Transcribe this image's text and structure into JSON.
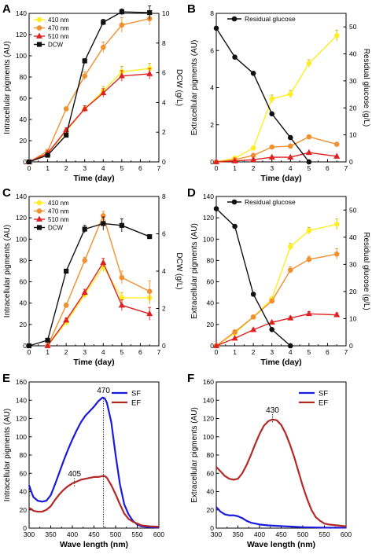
{
  "panels": [
    {
      "id": "A",
      "letter": "A",
      "type": "line",
      "xlabel": "Time (day)",
      "ylabel": "Intracellular pigments (AU)",
      "y2label": "DCW (g/L)",
      "xlim": [
        0,
        7
      ],
      "xticks": [
        0,
        1,
        2,
        3,
        4,
        5,
        6,
        7
      ],
      "ylim": [
        0,
        140
      ],
      "yticks": [
        0,
        20,
        40,
        60,
        80,
        100,
        120,
        140
      ],
      "y2lim": [
        0,
        10
      ],
      "y2ticks": [
        0,
        2,
        4,
        6,
        8,
        10
      ],
      "legend": {
        "position": "top-left",
        "items": [
          "410 nm",
          "470 nm",
          "510 nm",
          "DCW"
        ]
      },
      "series": [
        {
          "name": "410 nm",
          "color": "#ffee22",
          "marker": "circle",
          "axis": "left",
          "x": [
            0,
            1,
            2,
            3,
            4,
            5,
            6.5
          ],
          "y": [
            0,
            8,
            29,
            50,
            67,
            85,
            88
          ],
          "err": [
            0,
            1,
            2,
            3,
            4,
            5,
            5
          ]
        },
        {
          "name": "470 nm",
          "color": "#f0902e",
          "marker": "circle",
          "axis": "left",
          "x": [
            0,
            1,
            2,
            3,
            4,
            5,
            6.5
          ],
          "y": [
            0,
            10,
            50,
            81,
            108,
            129,
            135
          ],
          "err": [
            0,
            1,
            2,
            4,
            5,
            7,
            6
          ]
        },
        {
          "name": "510 nm",
          "color": "#e02020",
          "marker": "triangle",
          "axis": "left",
          "x": [
            0,
            1,
            2,
            3,
            4,
            5,
            6.5
          ],
          "y": [
            0,
            8,
            30,
            50,
            65,
            81,
            83
          ],
          "err": [
            0,
            1,
            2,
            3,
            4,
            5,
            5
          ]
        },
        {
          "name": "DCW",
          "color": "#111111",
          "marker": "square",
          "axis": "right",
          "x": [
            0,
            1,
            2,
            3,
            4,
            5,
            6.5
          ],
          "y": [
            0,
            0.45,
            1.8,
            6.8,
            9.4,
            10.1,
            10.05
          ],
          "err": [
            0,
            0.05,
            0.1,
            0.15,
            0.2,
            0.2,
            0.45
          ]
        }
      ]
    },
    {
      "id": "B",
      "letter": "B",
      "type": "line",
      "xlabel": "Time (day)",
      "ylabel": "Extracellular pigments (AU)",
      "y2label": "Residual glucose (g/L)",
      "xlim": [
        0,
        7
      ],
      "xticks": [
        0,
        1,
        2,
        3,
        4,
        5,
        6,
        7
      ],
      "ylim": [
        0,
        8
      ],
      "yticks": [
        0,
        2,
        4,
        6,
        8
      ],
      "y2lim": [
        0,
        55
      ],
      "y2ticks": [
        0,
        10,
        20,
        30,
        40,
        50
      ],
      "legend": {
        "position": "top-left",
        "items": [
          "Residual glucose"
        ]
      },
      "series": [
        {
          "name": "Extracellular 410 nm",
          "color": "#ffee22",
          "marker": "circle",
          "axis": "left",
          "x": [
            0,
            1,
            2,
            3,
            4,
            5,
            6.5
          ],
          "y": [
            0,
            0.2,
            0.75,
            3.4,
            3.65,
            5.3,
            6.8
          ],
          "err": [
            0,
            0.05,
            0.1,
            0.2,
            0.2,
            0.2,
            0.3
          ]
        },
        {
          "name": "Extracellular 470 nm",
          "color": "#f0902e",
          "marker": "circle",
          "axis": "left",
          "x": [
            0,
            1,
            2,
            3,
            4,
            5,
            6.5
          ],
          "y": [
            0,
            0.12,
            0.35,
            0.8,
            0.85,
            1.35,
            0.95
          ],
          "err": [
            0,
            0.02,
            0.04,
            0.06,
            0.06,
            0.08,
            0.08
          ]
        },
        {
          "name": "Extracellular 510 nm",
          "color": "#e02020",
          "marker": "triangle",
          "axis": "left",
          "x": [
            0,
            1,
            2,
            3,
            4,
            5,
            6.5
          ],
          "y": [
            0,
            0.05,
            0.12,
            0.25,
            0.25,
            0.5,
            0.3
          ],
          "err": [
            0,
            0.02,
            0.02,
            0.03,
            0.03,
            0.04,
            0.04
          ]
        },
        {
          "name": "Residual glucose",
          "color": "#111111",
          "marker": "circle",
          "axis": "right",
          "x": [
            0,
            1,
            2,
            3,
            4,
            5
          ],
          "y": [
            49.5,
            38.8,
            32.8,
            17.8,
            9,
            0
          ],
          "err": [
            0,
            0.4,
            0.4,
            0.4,
            0.3,
            0
          ]
        }
      ]
    },
    {
      "id": "C",
      "letter": "C",
      "type": "line",
      "xlabel": "Time (day)",
      "ylabel": "Intracellular pigments (AU)",
      "y2label": "DCW (g/L)",
      "xlim": [
        0,
        7
      ],
      "xticks": [
        0,
        1,
        2,
        3,
        4,
        5,
        6,
        7
      ],
      "ylim": [
        0,
        140
      ],
      "yticks": [
        0,
        20,
        40,
        60,
        80,
        100,
        120,
        140
      ],
      "y2lim": [
        0,
        8
      ],
      "y2ticks": [
        0,
        2,
        4,
        6,
        8
      ],
      "legend": {
        "position": "top-left",
        "items": [
          "410 nm",
          "470 nm",
          "510 nm",
          "DCW"
        ]
      },
      "series": [
        {
          "name": "410 nm",
          "color": "#ffee22",
          "marker": "circle",
          "axis": "left",
          "x": [
            1,
            2,
            3,
            4,
            5,
            6.5
          ],
          "y": [
            0,
            22,
            48,
            74,
            45,
            45
          ],
          "err": [
            0,
            2,
            3,
            4,
            5,
            6
          ]
        },
        {
          "name": "470 nm",
          "color": "#f0902e",
          "marker": "circle",
          "axis": "left",
          "x": [
            1,
            2,
            3,
            4,
            5,
            6.5
          ],
          "y": [
            0,
            38,
            80,
            122,
            64,
            51
          ],
          "err": [
            0,
            2,
            3,
            4,
            6,
            10
          ]
        },
        {
          "name": "510 nm",
          "color": "#e02020",
          "marker": "triangle",
          "axis": "left",
          "x": [
            1,
            2,
            3,
            4,
            5,
            6.5
          ],
          "y": [
            0,
            24,
            50,
            78,
            38,
            30
          ],
          "err": [
            0,
            2,
            3,
            4,
            5,
            6
          ]
        },
        {
          "name": "DCW",
          "color": "#111111",
          "marker": "square",
          "axis": "right",
          "x": [
            0,
            1,
            2,
            3,
            4,
            5,
            6.5
          ],
          "y": [
            0,
            0.3,
            4.0,
            6.25,
            6.55,
            6.45,
            5.85
          ],
          "err": [
            0,
            0.05,
            0.1,
            0.2,
            0.35,
            0.35,
            0.1
          ]
        }
      ]
    },
    {
      "id": "D",
      "letter": "D",
      "type": "line",
      "xlabel": "Time (day)",
      "ylabel": "Extracellular pigments (AU)",
      "y2label": "Residual glucose (g/L)",
      "xlim": [
        0,
        7
      ],
      "xticks": [
        0,
        1,
        2,
        3,
        4,
        5,
        6,
        7
      ],
      "ylim": [
        0,
        140
      ],
      "yticks": [
        0,
        20,
        40,
        60,
        80,
        100,
        120,
        140
      ],
      "y2lim": [
        0,
        55
      ],
      "y2ticks": [
        0,
        10,
        20,
        30,
        40,
        50
      ],
      "legend": {
        "position": "top-left",
        "items": [
          "Residual glucose"
        ]
      },
      "series": [
        {
          "name": "Extracellular 410 nm",
          "color": "#ffee22",
          "marker": "circle",
          "axis": "left",
          "x": [
            0,
            1,
            2,
            3,
            4,
            5,
            6.5
          ],
          "y": [
            0,
            12,
            27,
            44,
            93,
            108,
            114
          ],
          "err": [
            0,
            1,
            1.5,
            2,
            3,
            3,
            5
          ]
        },
        {
          "name": "Extracellular 470 nm",
          "color": "#f0902e",
          "marker": "circle",
          "axis": "left",
          "x": [
            0,
            1,
            2,
            3,
            4,
            5,
            6.5
          ],
          "y": [
            0,
            13,
            27,
            42,
            71,
            81,
            86
          ],
          "err": [
            0,
            1,
            1.5,
            2,
            3,
            3,
            5
          ]
        },
        {
          "name": "Extracellular 510 nm",
          "color": "#e02020",
          "marker": "triangle",
          "axis": "left",
          "x": [
            0,
            1,
            2,
            3,
            4,
            5,
            6.5
          ],
          "y": [
            0,
            7,
            15,
            22,
            26,
            30,
            29
          ],
          "err": [
            0,
            0.5,
            1,
            1,
            1.5,
            2,
            2
          ]
        },
        {
          "name": "Residual glucose",
          "color": "#111111",
          "marker": "circle",
          "axis": "right",
          "x": [
            0,
            1,
            2,
            3,
            4
          ],
          "y": [
            50.5,
            44,
            19,
            6,
            0
          ],
          "err": [
            0,
            0.3,
            0.3,
            0.3,
            0
          ]
        }
      ]
    },
    {
      "id": "E",
      "letter": "E",
      "type": "line",
      "xlabel": "Wave length (nm)",
      "ylabel": "Intracellular pigments (AU)",
      "xlim": [
        300,
        600
      ],
      "xticks": [
        300,
        350,
        400,
        450,
        500,
        550,
        600
      ],
      "ylim": [
        0,
        160
      ],
      "yticks": [
        0,
        20,
        40,
        60,
        80,
        100,
        120,
        140,
        160
      ],
      "legend": {
        "position": "top-right",
        "items": [
          "SF",
          "EF"
        ]
      },
      "peaks": [
        {
          "label": "470",
          "x": 472,
          "y": 142
        },
        {
          "label": "405",
          "x": 405,
          "y": 48
        }
      ],
      "series": [
        {
          "name": "SF",
          "color": "#1a1adc",
          "x": [
            300,
            305,
            310,
            320,
            330,
            340,
            350,
            360,
            370,
            380,
            390,
            400,
            410,
            420,
            430,
            440,
            450,
            460,
            470,
            475,
            480,
            490,
            500,
            510,
            520,
            530,
            540,
            550,
            560,
            580,
            600
          ],
          "y": [
            47,
            40,
            34,
            30,
            29,
            30,
            36,
            48,
            61,
            74,
            86,
            97,
            107,
            116,
            123,
            128,
            133,
            139,
            143,
            142,
            137,
            116,
            80,
            48,
            26,
            15,
            8,
            4,
            2,
            1,
            0.5
          ]
        },
        {
          "name": "EF",
          "color": "#b52828",
          "x": [
            300,
            305,
            310,
            320,
            330,
            340,
            350,
            360,
            370,
            380,
            390,
            400,
            410,
            420,
            430,
            440,
            450,
            460,
            470,
            475,
            480,
            490,
            500,
            510,
            520,
            530,
            540,
            550,
            560,
            580,
            600
          ],
          "y": [
            22,
            21,
            19,
            18,
            18,
            20,
            24,
            31,
            37,
            42,
            46,
            49,
            51,
            53,
            54,
            55,
            56,
            56,
            57,
            57,
            55,
            47,
            37,
            26,
            16,
            10,
            7,
            5,
            3,
            2,
            1.5
          ]
        }
      ]
    },
    {
      "id": "F",
      "letter": "F",
      "type": "line",
      "xlabel": "Wave length (nm)",
      "ylabel": "Extracellular pigments (AU)",
      "xlim": [
        300,
        600
      ],
      "xticks": [
        300,
        350,
        400,
        450,
        500,
        550,
        600
      ],
      "ylim": [
        0,
        160
      ],
      "yticks": [
        0,
        20,
        40,
        60,
        80,
        100,
        120,
        140,
        160
      ],
      "legend": {
        "position": "top-right",
        "items": [
          "SF",
          "EF"
        ]
      },
      "peaks": [
        {
          "label": "430",
          "x": 430,
          "y": 118
        }
      ],
      "series": [
        {
          "name": "SF",
          "color": "#1a1adc",
          "x": [
            300,
            310,
            320,
            330,
            340,
            350,
            360,
            370,
            380,
            400,
            420,
            440,
            460,
            480,
            500,
            550,
            600
          ],
          "y": [
            23,
            18,
            15,
            14,
            14,
            13,
            11,
            8,
            6,
            4,
            3,
            2.5,
            2,
            1.5,
            1,
            0.5,
            0.5
          ]
        },
        {
          "name": "EF",
          "color": "#b52828",
          "x": [
            300,
            310,
            320,
            330,
            340,
            350,
            360,
            370,
            380,
            390,
            400,
            410,
            420,
            430,
            440,
            450,
            460,
            470,
            480,
            490,
            500,
            510,
            520,
            530,
            540,
            550,
            560,
            580,
            600
          ],
          "y": [
            67,
            62,
            57,
            54,
            53,
            54,
            60,
            69,
            80,
            92,
            103,
            112,
            117,
            119,
            118,
            113,
            104,
            92,
            78,
            62,
            46,
            32,
            20,
            12,
            8,
            5,
            4,
            3,
            2
          ]
        }
      ]
    }
  ]
}
